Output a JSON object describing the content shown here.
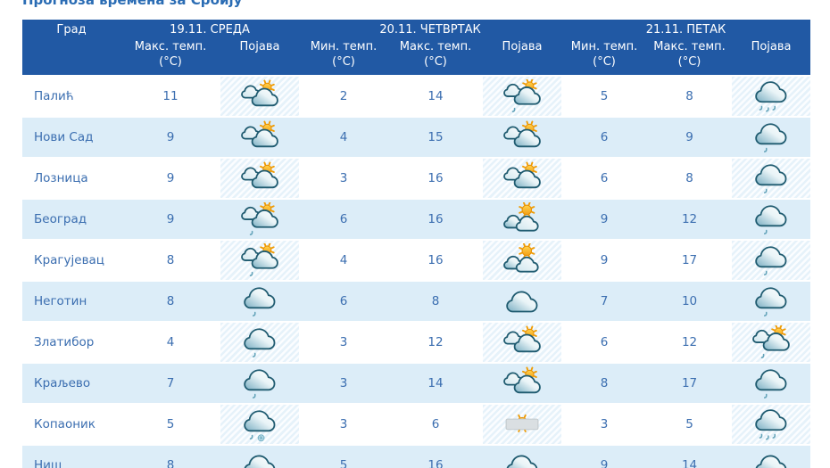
{
  "page": {
    "title": "Прогноза времена за Србију"
  },
  "colors": {
    "header_bg": "#2159a4",
    "header_text": "#ffffff",
    "row_bg": "#ffffff",
    "row_alt_bg": "#dcedf8",
    "cell_text": "#3b6eb0",
    "title_text": "#2a6cb4",
    "icon_cell_bg": "#e6f2fa",
    "sun": "#f7b322",
    "cloud_teal": "#79aec2"
  },
  "table": {
    "city_header": "Град",
    "days": [
      {
        "date_label": "19.11. СРЕДА",
        "columns": [
          {
            "label": "Макс. темп.",
            "unit": "(°C)"
          },
          {
            "label": "Појава"
          }
        ]
      },
      {
        "date_label": "20.11. ЧЕТВРТАК",
        "columns": [
          {
            "label": "Мин. темп.",
            "unit": "(°C)"
          },
          {
            "label": "Макс. темп.",
            "unit": "(°C)"
          },
          {
            "label": "Појава"
          }
        ]
      },
      {
        "date_label": "21.11. ПЕТАК",
        "columns": [
          {
            "label": "Мин. темп.",
            "unit": "(°C)"
          },
          {
            "label": "Макс. темп.",
            "unit": "(°C)"
          },
          {
            "label": "Појава"
          }
        ]
      }
    ],
    "rows": [
      {
        "city": "Палић",
        "wed": {
          "max": "11",
          "icon": "cloud-sun-icon"
        },
        "thu": {
          "min": "2",
          "max": "14",
          "icon": "cloud-sun-rain-icon"
        },
        "fri": {
          "min": "5",
          "max": "8",
          "icon": "cloud-rain3-icon"
        }
      },
      {
        "city": "Нови Сад",
        "wed": {
          "max": "9",
          "icon": "cloud-sun-icon"
        },
        "thu": {
          "min": "4",
          "max": "15",
          "icon": "cloud-sun-icon"
        },
        "fri": {
          "min": "6",
          "max": "9",
          "icon": "cloud-rain1-icon"
        }
      },
      {
        "city": "Лозница",
        "wed": {
          "max": "9",
          "icon": "cloud-sun-icon"
        },
        "thu": {
          "min": "3",
          "max": "16",
          "icon": "cloud-sun-icon"
        },
        "fri": {
          "min": "6",
          "max": "8",
          "icon": "cloud-rain1-icon"
        }
      },
      {
        "city": "Београд",
        "wed": {
          "max": "9",
          "icon": "cloud-sun-rain-icon"
        },
        "thu": {
          "min": "6",
          "max": "16",
          "icon": "sun-cloud-icon"
        },
        "fri": {
          "min": "9",
          "max": "12",
          "icon": "cloud-rain1-icon"
        }
      },
      {
        "city": "Крагујевац",
        "wed": {
          "max": "8",
          "icon": "cloud-sun-rain-icon"
        },
        "thu": {
          "min": "4",
          "max": "16",
          "icon": "sun-cloud-icon"
        },
        "fri": {
          "min": "9",
          "max": "17",
          "icon": "cloud-rain1-icon"
        }
      },
      {
        "city": "Неготин",
        "wed": {
          "max": "8",
          "icon": "cloud-rain1-icon"
        },
        "thu": {
          "min": "6",
          "max": "8",
          "icon": "cloud-icon"
        },
        "fri": {
          "min": "7",
          "max": "10",
          "icon": "cloud-rain1-icon"
        }
      },
      {
        "city": "Златибор",
        "wed": {
          "max": "4",
          "icon": "cloud-rain1-icon"
        },
        "thu": {
          "min": "3",
          "max": "12",
          "icon": "cloud-sun-icon"
        },
        "fri": {
          "min": "6",
          "max": "12",
          "icon": "cloud-sun-rain-icon"
        }
      },
      {
        "city": "Краљево",
        "wed": {
          "max": "7",
          "icon": "cloud-rain1-icon"
        },
        "thu": {
          "min": "3",
          "max": "14",
          "icon": "cloud-sun-icon"
        },
        "fri": {
          "min": "8",
          "max": "17",
          "icon": "cloud-rain1-icon"
        }
      },
      {
        "city": "Копаоник",
        "wed": {
          "max": "5",
          "icon": "cloud-rain-snow-icon"
        },
        "thu": {
          "min": "3",
          "max": "6",
          "icon": "sun-fog-icon"
        },
        "fri": {
          "min": "3",
          "max": "5",
          "icon": "cloud-rain3-icon"
        }
      },
      {
        "city": "Ниш",
        "wed": {
          "max": "8",
          "icon": "cloud-icon"
        },
        "thu": {
          "min": "5",
          "max": "16",
          "icon": "cloud-icon"
        },
        "fri": {
          "min": "9",
          "max": "14",
          "icon": "cloud-icon"
        }
      }
    ]
  }
}
